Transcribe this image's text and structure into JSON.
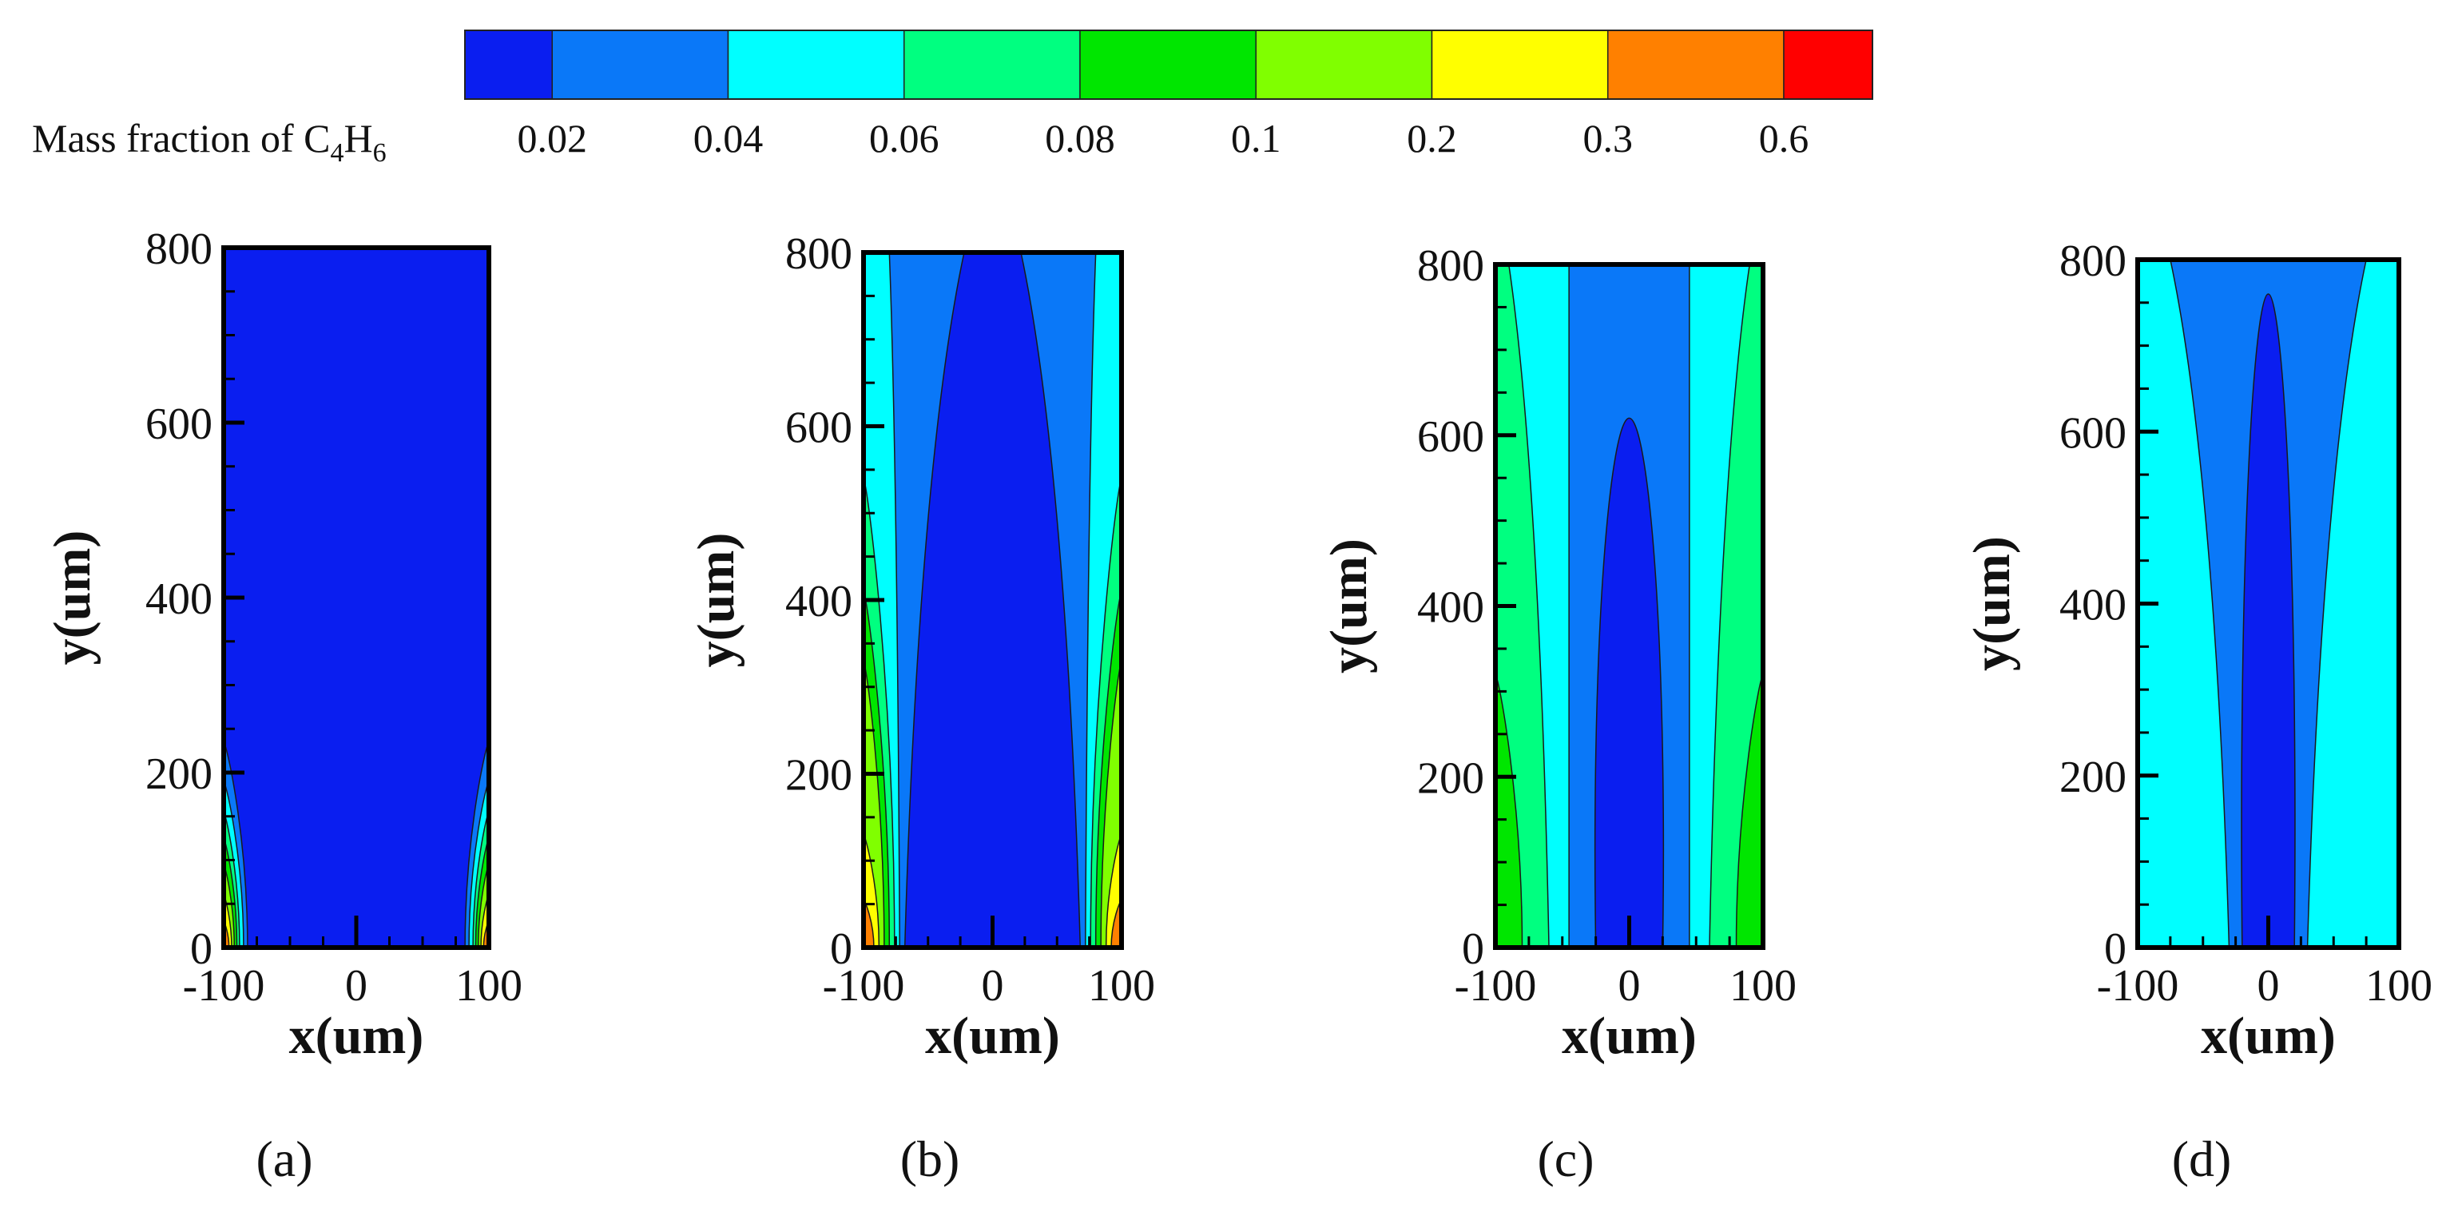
{
  "legend": {
    "title": "Mass fraction of C",
    "title_sub1": "4",
    "title_mid": "H",
    "title_sub2": "6",
    "levels": [
      "0.02",
      "0.04",
      "0.06",
      "0.08",
      "0.1",
      "0.2",
      "0.3",
      "0.6"
    ],
    "colors": [
      "#0a1ef0",
      "#0a78f8",
      "#00ffff",
      "#00ff80",
      "#00e600",
      "#80ff00",
      "#ffff00",
      "#ff8000",
      "#ff0000"
    ]
  },
  "chart_data": [
    {
      "type": "contour",
      "panel": "(a)",
      "title": "",
      "xlabel": "x(um)",
      "ylabel": "y(um)",
      "xlim": [
        -100,
        100
      ],
      "ylim": [
        0,
        800
      ],
      "xticks": [
        "-100",
        "0",
        "100"
      ],
      "yticks": [
        "0",
        "200",
        "400",
        "600",
        "800"
      ],
      "background_level": 0,
      "contours": [
        {
          "level": 1,
          "side": "both",
          "wall_height": 235,
          "bottom_x": 82
        },
        {
          "level": 2,
          "side": "both",
          "wall_height": 190,
          "bottom_x": 85
        },
        {
          "level": 3,
          "side": "both",
          "wall_height": 155,
          "bottom_x": 88
        },
        {
          "level": 4,
          "side": "both",
          "wall_height": 125,
          "bottom_x": 90
        },
        {
          "level": 5,
          "side": "both",
          "wall_height": 95,
          "bottom_x": 92
        },
        {
          "level": 6,
          "side": "both",
          "wall_height": 60,
          "bottom_x": 94
        },
        {
          "level": 7,
          "side": "both",
          "wall_height": 30,
          "bottom_x": 96
        }
      ]
    },
    {
      "type": "contour",
      "panel": "(b)",
      "title": "",
      "xlabel": "x(um)",
      "ylabel": "y(um)",
      "xlim": [
        -100,
        100
      ],
      "ylim": [
        0,
        800
      ],
      "xticks": [
        "-100",
        "0",
        "100"
      ],
      "yticks": [
        "0",
        "200",
        "400",
        "600",
        "800"
      ],
      "background_level": 0,
      "contours": [
        {
          "level": 1,
          "side": "both",
          "wall_height": 800,
          "bottom_x": 68,
          "top_x": 22
        },
        {
          "level": 2,
          "side": "both",
          "wall_height": 800,
          "bottom_x": 72,
          "top_x": 80
        },
        {
          "level": 3,
          "side": "both",
          "wall_height": 540,
          "bottom_x": 76
        },
        {
          "level": 4,
          "side": "both",
          "wall_height": 410,
          "bottom_x": 80
        },
        {
          "level": 5,
          "side": "both",
          "wall_height": 330,
          "bottom_x": 84
        },
        {
          "level": 6,
          "side": "both",
          "wall_height": 130,
          "bottom_x": 88
        },
        {
          "level": 7,
          "side": "both",
          "wall_height": 55,
          "bottom_x": 92
        }
      ]
    },
    {
      "type": "contour",
      "panel": "(c)",
      "title": "",
      "xlabel": "x(um)",
      "ylabel": "y(um)",
      "xlim": [
        -100,
        100
      ],
      "ylim": [
        0,
        800
      ],
      "xticks": [
        "-100",
        "0",
        "100"
      ],
      "yticks": [
        "0",
        "200",
        "400",
        "600",
        "800"
      ],
      "background_level": 0,
      "contours": [
        {
          "level": 1,
          "side": "both",
          "wall_height": 620,
          "bottom_x": 25,
          "apex": true
        },
        {
          "level": 2,
          "side": "both",
          "wall_height": 800,
          "bottom_x": 45,
          "top_x": 45
        },
        {
          "level": 3,
          "side": "both",
          "wall_height": 800,
          "bottom_x": 60,
          "top_x": 90
        },
        {
          "level": 4,
          "side": "both",
          "wall_height": 320,
          "bottom_x": 80
        }
      ]
    },
    {
      "type": "contour",
      "panel": "(d)",
      "title": "",
      "xlabel": "x(um)",
      "ylabel": "y(um)",
      "xlim": [
        -100,
        100
      ],
      "ylim": [
        0,
        800
      ],
      "xticks": [
        "-100",
        "0",
        "100"
      ],
      "yticks": [
        "0",
        "200",
        "400",
        "600",
        "800"
      ],
      "background_level": 0,
      "contours": [
        {
          "level": 1,
          "side": "both",
          "wall_height": 760,
          "bottom_x": 20,
          "apex": true
        },
        {
          "level": 2,
          "side": "both",
          "wall_height": 800,
          "bottom_x": 30,
          "top_x": 75
        }
      ]
    }
  ]
}
